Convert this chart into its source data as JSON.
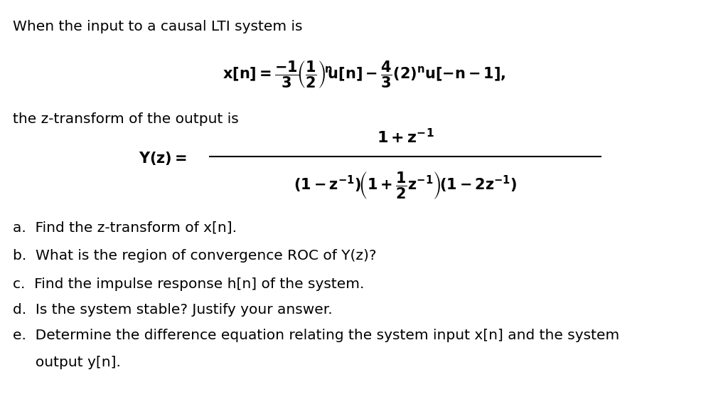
{
  "background_color": "#ffffff",
  "title_line": "When the input to a causal LTI system is",
  "middle_line": "the z-transform of the output is",
  "text_color": "#000000",
  "font_size_text": 14.5,
  "font_size_eq": 15,
  "items": [
    "a.  Find the z-transform of x[n].",
    "b.  What is the region of convergence ROC of Y(z)?",
    "c.  Find the impulse response h[n] of the system.",
    "d.  Is the system stable? Justify your answer.",
    "e.  Determine the difference equation relating the system input x[n] and the system",
    "     output y[n]."
  ]
}
